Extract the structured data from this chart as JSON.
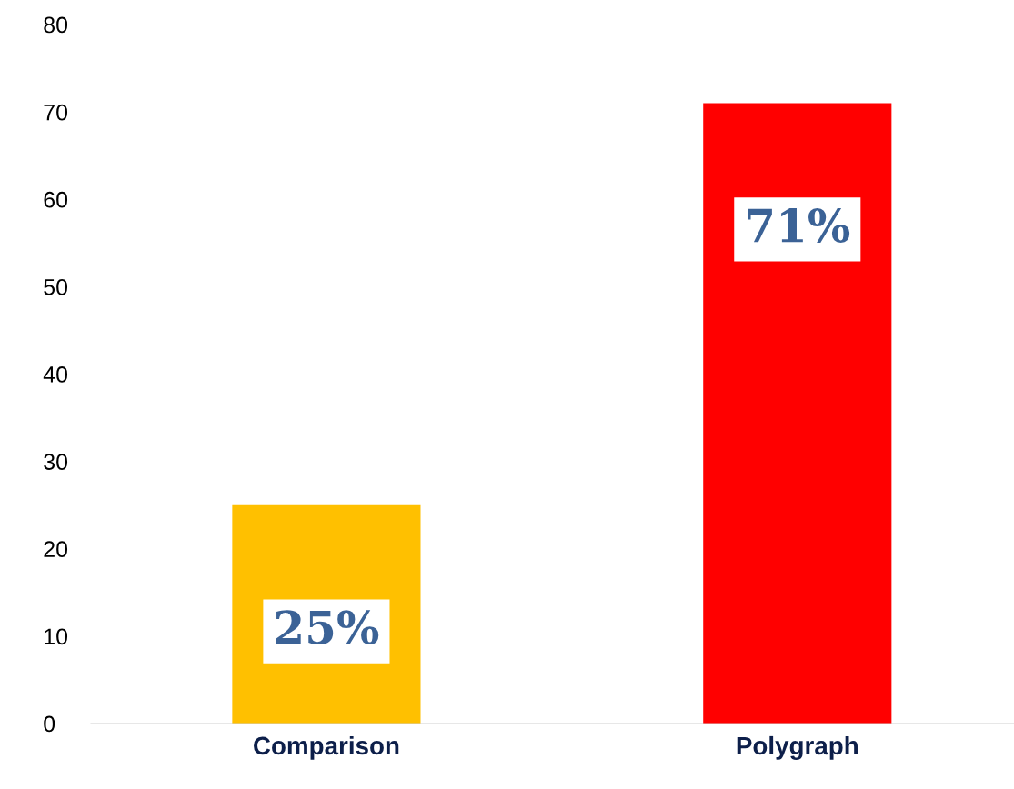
{
  "chart_data": {
    "type": "bar",
    "categories": [
      "Comparison",
      "Polygraph"
    ],
    "values": [
      25,
      71
    ],
    "colors": [
      "#ffc000",
      "#ff0000"
    ],
    "value_labels": [
      "25%",
      "71%"
    ],
    "ylim": [
      0,
      80
    ],
    "yticks": [
      0,
      10,
      20,
      30,
      40,
      50,
      60,
      70,
      80
    ],
    "grid": false,
    "legend": false
  }
}
